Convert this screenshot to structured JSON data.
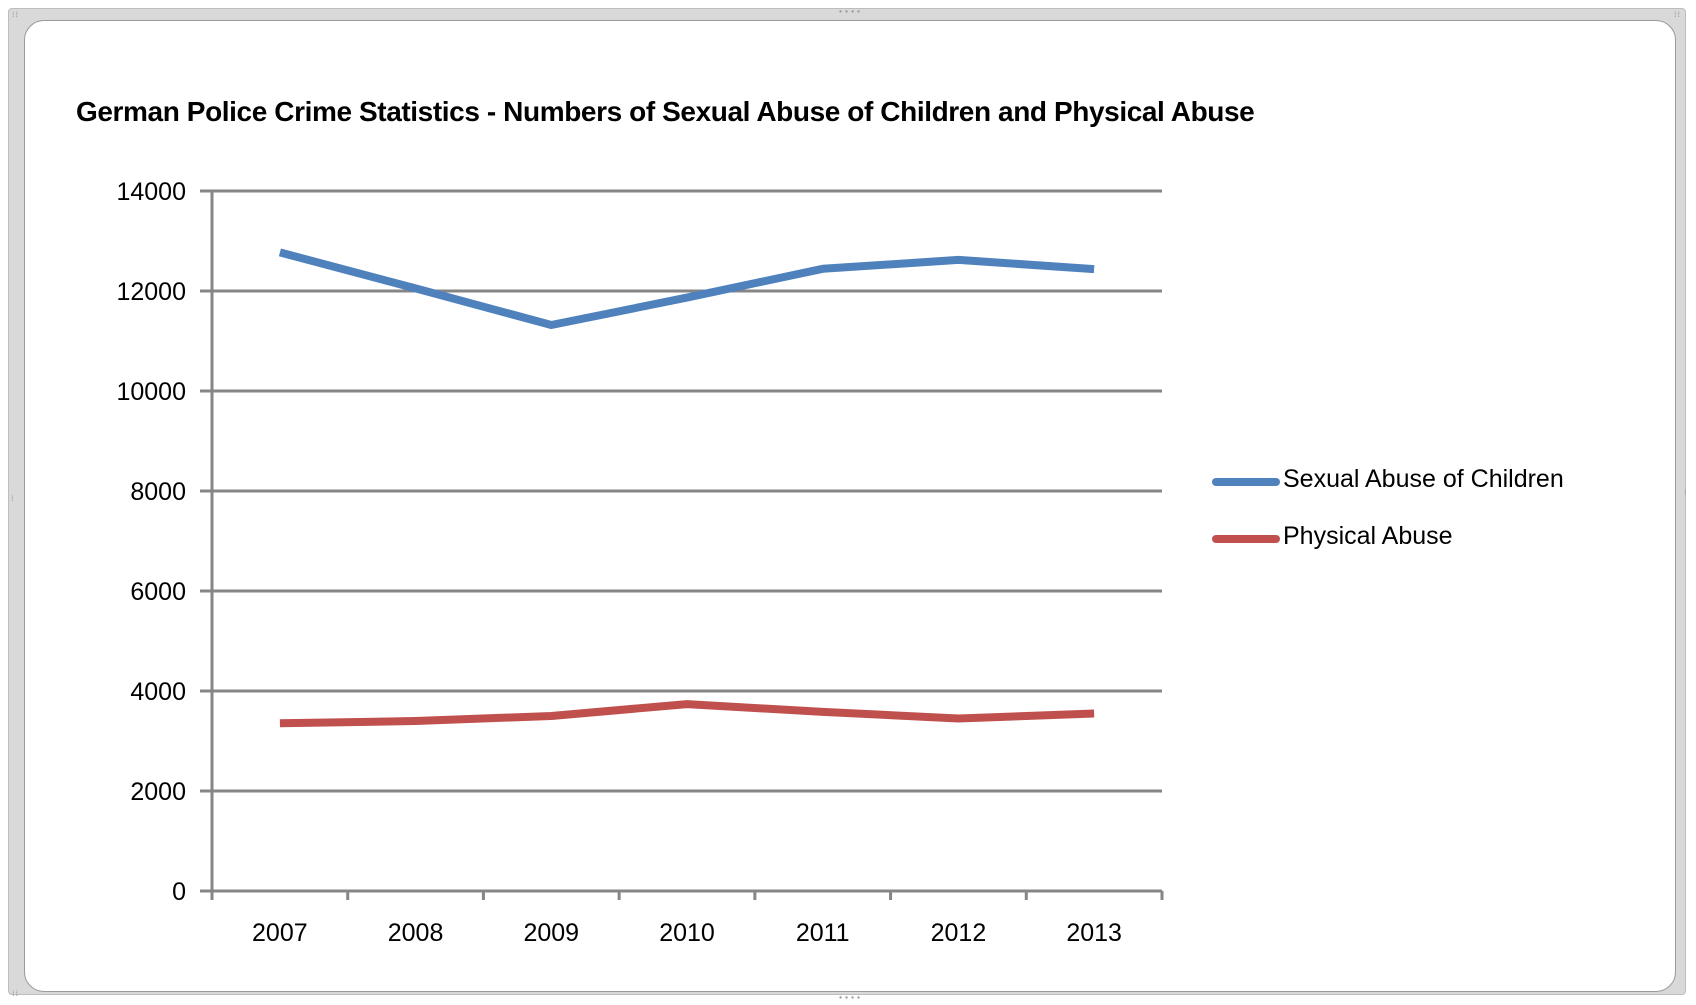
{
  "chart_data": {
    "type": "line",
    "title": "German Police Crime Statistics - Numbers of Sexual Abuse of Children and Physical Abuse",
    "xlabel": "",
    "ylabel": "",
    "categories": [
      "2007",
      "2008",
      "2009",
      "2010",
      "2011",
      "2012",
      "2013"
    ],
    "y_ticks": [
      "0",
      "2000",
      "4000",
      "6000",
      "8000",
      "10000",
      "12000",
      "14000"
    ],
    "ylim": [
      0,
      14000
    ],
    "grid": true,
    "legend_position": "right",
    "series": [
      {
        "name": "Sexual Abuse of Children",
        "color": "#4f81bd",
        "values": [
          12772,
          12052,
          11319,
          11867,
          12444,
          12623,
          12437
        ]
      },
      {
        "name": "Physical Abuse",
        "color": "#c0504d",
        "values": [
          3355,
          3400,
          3500,
          3738,
          3583,
          3450,
          3550
        ]
      }
    ]
  }
}
